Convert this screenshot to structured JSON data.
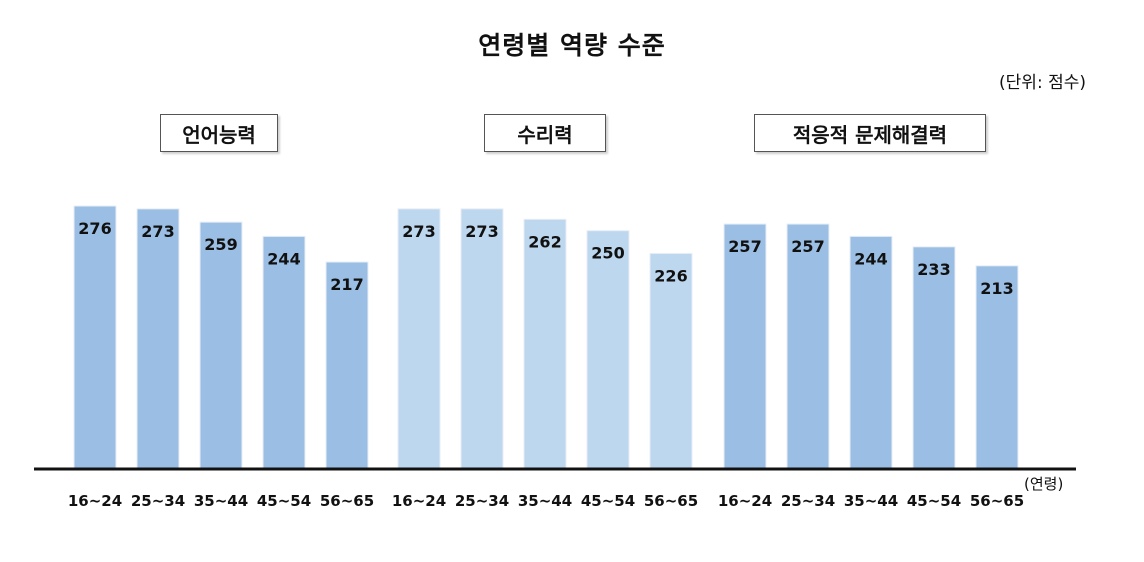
{
  "chart_data": {
    "type": "bar",
    "title": "연령별 역량 수준",
    "unit_label": "(단위: 점수)",
    "x_unit_label": "(연령)",
    "categories": [
      "16~24",
      "25~34",
      "35~44",
      "45~54",
      "56~65"
    ],
    "series": [
      {
        "name": "언어능력",
        "color": "#9bbfe4",
        "values": [
          276,
          273,
          259,
          244,
          217
        ]
      },
      {
        "name": "수리력",
        "color": "#bdd7ee",
        "values": [
          273,
          273,
          262,
          250,
          226
        ]
      },
      {
        "name": "적응적 문제해결력",
        "color": "#9bbfe4",
        "values": [
          257,
          257,
          244,
          233,
          213
        ]
      }
    ],
    "ylim": [
      0,
      280
    ],
    "grid": false,
    "legend": "none"
  }
}
